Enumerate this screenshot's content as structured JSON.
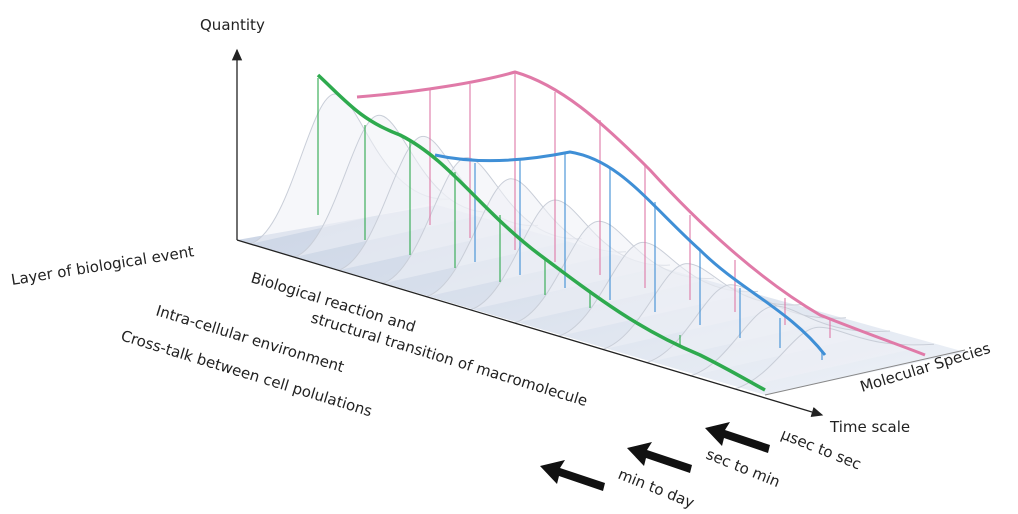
{
  "axes": {
    "vertical": "Quantity",
    "depth": "Molecular Species",
    "horizontal": "Time scale"
  },
  "layers": {
    "title": "Layer of biological event",
    "items": [
      "Biological reaction and",
      "structural transition of macromolecule",
      "Intra-cellular environment",
      "Cross-talk between cell polulations"
    ]
  },
  "scales": [
    "μsec to sec",
    "sec to min",
    "min to day"
  ]
}
